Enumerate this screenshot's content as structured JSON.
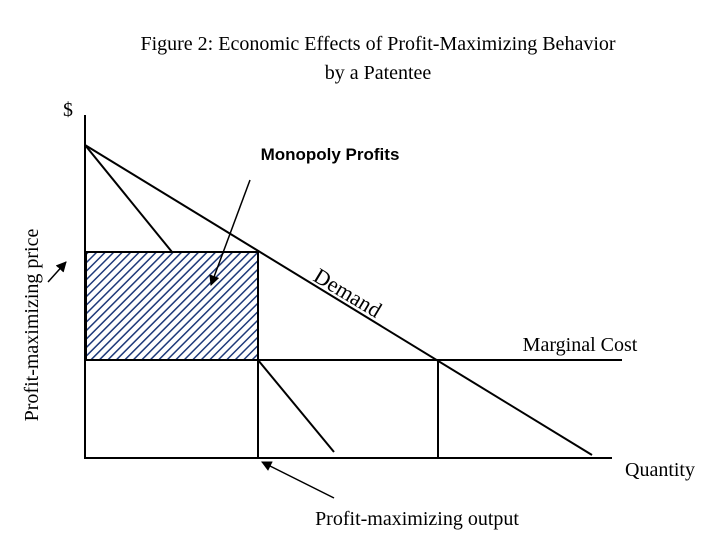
{
  "title": {
    "line1": "Figure 2:  Economic Effects of  Profit-Maximizing Behavior",
    "line2": "by a Patentee"
  },
  "y_axis_label": "$",
  "x_axis_label": "Quantity",
  "monopoly_profits_label": "Monopoly Profits",
  "price_label": "Profit-maximizing price",
  "demand_label": "Demand",
  "marginal_cost_label": "Marginal Cost",
  "output_label": "Profit-maximizing output"
}
